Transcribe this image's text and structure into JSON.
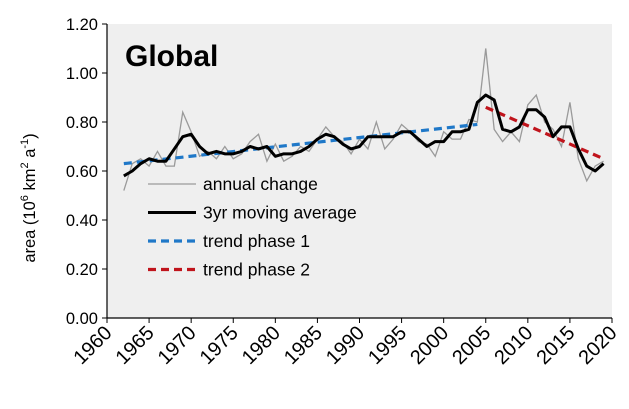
{
  "chart_data": {
    "type": "line",
    "title": "Global",
    "xlabel": "",
    "ylabel_main": "area (10",
    "ylabel_exp1": "6",
    "ylabel_mid": " km",
    "ylabel_exp2": "2",
    "ylabel_mid2": " a",
    "ylabel_exp3": "-1",
    "ylabel_end": ")",
    "xlim": [
      1960,
      2020
    ],
    "ylim": [
      0.0,
      1.2
    ],
    "xticks": [
      1960,
      1965,
      1970,
      1975,
      1980,
      1985,
      1990,
      1995,
      2000,
      2005,
      2010,
      2015,
      2020
    ],
    "yticks": [
      "0.00",
      "0.20",
      "0.40",
      "0.60",
      "0.80",
      "1.00",
      "1.20"
    ],
    "ytick_values": [
      0.0,
      0.2,
      0.4,
      0.6,
      0.8,
      1.0,
      1.2
    ],
    "legend_position": "lower-left",
    "colors": {
      "annual": "#9a9a9a",
      "moving": "#000000",
      "phase1": "#1f78c8",
      "phase2": "#c0141c",
      "plot_bg": "#efefef"
    },
    "series": [
      {
        "name": "annual change",
        "style": "thin-gray",
        "x": [
          1962,
          1963,
          1964,
          1965,
          1966,
          1967,
          1968,
          1969,
          1970,
          1971,
          1972,
          1973,
          1974,
          1975,
          1976,
          1977,
          1978,
          1979,
          1980,
          1981,
          1982,
          1983,
          1984,
          1985,
          1986,
          1987,
          1988,
          1989,
          1990,
          1991,
          1992,
          1993,
          1994,
          1995,
          1996,
          1997,
          1998,
          1999,
          2000,
          2001,
          2002,
          2003,
          2004,
          2005,
          2006,
          2007,
          2008,
          2009,
          2010,
          2011,
          2012,
          2013,
          2014,
          2015,
          2016,
          2017,
          2018,
          2019
        ],
        "y": [
          0.52,
          0.63,
          0.65,
          0.62,
          0.68,
          0.62,
          0.62,
          0.84,
          0.76,
          0.66,
          0.68,
          0.65,
          0.7,
          0.65,
          0.67,
          0.72,
          0.75,
          0.64,
          0.71,
          0.64,
          0.66,
          0.7,
          0.68,
          0.73,
          0.78,
          0.74,
          0.72,
          0.67,
          0.73,
          0.69,
          0.8,
          0.69,
          0.73,
          0.79,
          0.76,
          0.72,
          0.71,
          0.66,
          0.76,
          0.73,
          0.73,
          0.81,
          0.8,
          1.1,
          0.77,
          0.72,
          0.76,
          0.72,
          0.87,
          0.91,
          0.8,
          0.77,
          0.7,
          0.88,
          0.65,
          0.56,
          0.62,
          0.64
        ]
      },
      {
        "name": "3yr moving average",
        "style": "thick-black",
        "x": [
          1962,
          1963,
          1964,
          1965,
          1966,
          1967,
          1968,
          1969,
          1970,
          1971,
          1972,
          1973,
          1974,
          1975,
          1976,
          1977,
          1978,
          1979,
          1980,
          1981,
          1982,
          1983,
          1984,
          1985,
          1986,
          1987,
          1988,
          1989,
          1990,
          1991,
          1992,
          1993,
          1994,
          1995,
          1996,
          1997,
          1998,
          1999,
          2000,
          2001,
          2002,
          2003,
          2004,
          2005,
          2006,
          2007,
          2008,
          2009,
          2010,
          2011,
          2012,
          2013,
          2014,
          2015,
          2016,
          2017,
          2018,
          2019
        ],
        "y": [
          0.58,
          0.6,
          0.63,
          0.65,
          0.64,
          0.64,
          0.69,
          0.74,
          0.75,
          0.7,
          0.67,
          0.68,
          0.67,
          0.67,
          0.68,
          0.7,
          0.69,
          0.7,
          0.66,
          0.67,
          0.67,
          0.68,
          0.7,
          0.73,
          0.75,
          0.74,
          0.71,
          0.69,
          0.7,
          0.74,
          0.74,
          0.74,
          0.74,
          0.76,
          0.76,
          0.73,
          0.7,
          0.72,
          0.72,
          0.76,
          0.76,
          0.77,
          0.88,
          0.91,
          0.89,
          0.77,
          0.76,
          0.78,
          0.85,
          0.85,
          0.82,
          0.74,
          0.78,
          0.78,
          0.69,
          0.62,
          0.6,
          0.63
        ]
      },
      {
        "name": "trend phase 1",
        "style": "dashed-blue",
        "x": [
          1962,
          2004
        ],
        "y": [
          0.63,
          0.79
        ]
      },
      {
        "name": "trend phase 2",
        "style": "dashed-red",
        "x": [
          2005,
          2019
        ],
        "y": [
          0.86,
          0.65
        ]
      }
    ]
  }
}
